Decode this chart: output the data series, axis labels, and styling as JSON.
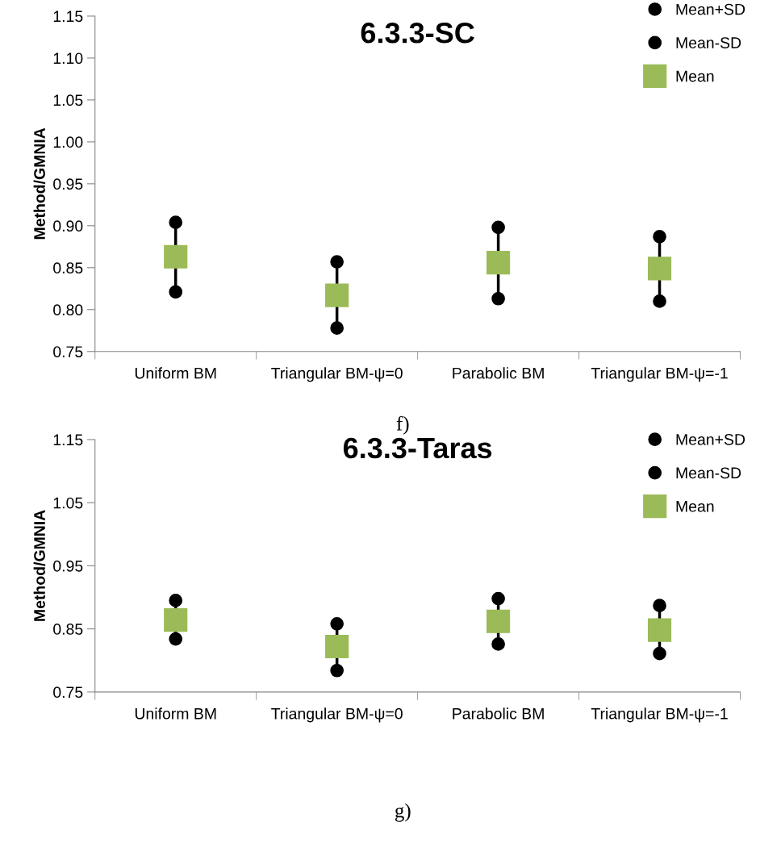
{
  "chart_data": [
    {
      "type": "scatter",
      "title": "6.3.3-SC",
      "ylabel": "Method/GMNIA",
      "annotations": [
        "f)"
      ],
      "categories": [
        "Uniform BM",
        "Triangular BM-ψ=0",
        "Parabolic BM",
        "Triangular BM-ψ=-1"
      ],
      "series": [
        {
          "name": "Mean+SD",
          "color": "#000000",
          "marker": "circle",
          "values": [
            0.904,
            0.857,
            0.898,
            0.887
          ]
        },
        {
          "name": "Mean-SD",
          "color": "#000000",
          "marker": "circle",
          "values": [
            0.821,
            0.778,
            0.813,
            0.81
          ]
        },
        {
          "name": "Mean",
          "color": "#9bbb59",
          "marker": "square",
          "values": [
            0.863,
            0.817,
            0.856,
            0.849
          ]
        }
      ],
      "ylim": [
        0.75,
        1.15
      ],
      "yticks": [
        0.75,
        {
          "value": 0.8,
          "label": "0.80"
        },
        0.85,
        {
          "value": 0.9,
          "label": "0.90"
        },
        0.95,
        {
          "value": 1.0,
          "label": "1.00"
        },
        1.05,
        {
          "value": 1.1,
          "label": "1.10"
        },
        1.15
      ],
      "grid": false,
      "legend": "top right"
    },
    {
      "type": "scatter",
      "title": "6.3.3-Taras",
      "ylabel": "Method/GMNIA",
      "annotations": [
        "g)"
      ],
      "categories": [
        "Uniform BM",
        "Triangular BM-ψ=0",
        "Parabolic BM",
        "Triangular BM-ψ=-1"
      ],
      "series": [
        {
          "name": "Mean+SD",
          "color": "#000000",
          "marker": "circle",
          "values": [
            0.895,
            0.858,
            0.898,
            0.887
          ]
        },
        {
          "name": "Mean-SD",
          "color": "#000000",
          "marker": "circle",
          "values": [
            0.834,
            0.784,
            0.826,
            0.811
          ]
        },
        {
          "name": "Mean",
          "color": "#9bbb59",
          "marker": "square",
          "values": [
            0.864,
            0.822,
            0.862,
            0.848
          ]
        }
      ],
      "ylim": [
        0.75,
        1.15
      ],
      "yticks": [
        0.75,
        0.85,
        0.95,
        1.05,
        1.15
      ],
      "grid": false,
      "legend": "top right"
    }
  ]
}
